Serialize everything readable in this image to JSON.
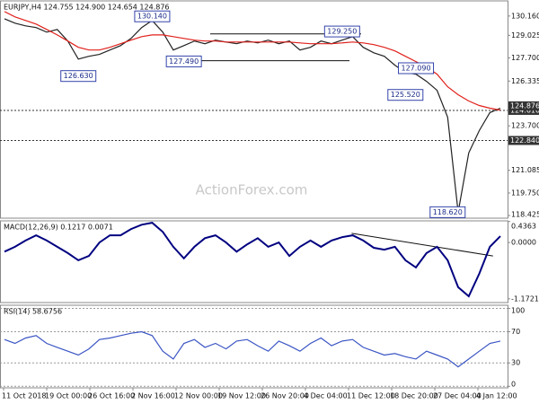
{
  "chart_data": [
    {
      "type": "line",
      "title": "EURJPY,H4 124.755 124.900 124.654 124.876",
      "watermark": "ActionForex.com",
      "ylim": [
        118.27,
        131.05
      ],
      "yticks": [
        {
          "value": 130.16,
          "label": "130.160"
        },
        129.025,
        {
          "value": 127.7,
          "label": "127.700"
        },
        126.335,
        {
          "value": 123.7,
          "label": "123.700"
        },
        121.085,
        {
          "value": 119.75,
          "label": "119.750"
        },
        118.425
      ],
      "series": [
        {
          "color": "#222222",
          "values": [
            130.0,
            129.74,
            129.58,
            129.48,
            129.21,
            129.37,
            128.69,
            127.63,
            127.79,
            127.9,
            128.16,
            128.42,
            128.84,
            129.48,
            129.9,
            129.21,
            128.16,
            128.42,
            128.69,
            128.53,
            128.74,
            128.63,
            128.53,
            128.69,
            128.58,
            128.74,
            128.53,
            128.69,
            128.16,
            128.32,
            128.69,
            128.53,
            128.74,
            128.95,
            128.32,
            128.0,
            127.79,
            127.27,
            126.84,
            126.74,
            126.32,
            125.79,
            124.21,
            118.62,
            122.11,
            123.42,
            124.48,
            124.74
          ]
        },
        {
          "color": "#e0201b",
          "values": [
            130.42,
            130.11,
            129.9,
            129.69,
            129.37,
            129.05,
            128.69,
            128.32,
            128.16,
            128.16,
            128.32,
            128.53,
            128.74,
            128.95,
            129.05,
            129.05,
            128.95,
            128.84,
            128.74,
            128.69,
            128.69,
            128.63,
            128.63,
            128.63,
            128.63,
            128.63,
            128.63,
            128.63,
            128.58,
            128.53,
            128.53,
            128.53,
            128.58,
            128.63,
            128.58,
            128.48,
            128.32,
            128.11,
            127.79,
            127.48,
            127.16,
            126.74,
            126.0,
            125.53,
            125.16,
            124.9,
            124.74,
            124.63
          ]
        }
      ],
      "annotations": [
        {
          "x": 14,
          "value": 130.14,
          "label": "130.140"
        },
        {
          "x": 7,
          "value": 126.63,
          "label": "126.630"
        },
        {
          "x": 17,
          "value": 127.49,
          "label": "127.490"
        },
        {
          "x": 32,
          "value": 129.25,
          "label": "129.250"
        },
        {
          "x": 39,
          "value": 127.09,
          "label": "127.090"
        },
        {
          "x": 38,
          "value": 125.52,
          "label": "125.520"
        },
        {
          "x": 42,
          "value": 118.62,
          "label": "118.620"
        }
      ],
      "trendlines": [
        {
          "x": [
            19.5,
            33.8
          ],
          "values": [
            129.11,
            129.11
          ]
        },
        {
          "x": [
            16,
            32.7
          ],
          "values": [
            127.53,
            127.53
          ]
        }
      ],
      "levels": [
        {
          "value": 124.61,
          "label": "124.610"
        },
        {
          "value": 122.84,
          "label": "122.840"
        }
      ],
      "last": {
        "value": 124.876,
        "label": "124.876"
      }
    },
    {
      "type": "line",
      "title": "MACD(12,26,9) 0.1217 0.0071",
      "ylim": [
        -1.25,
        0.45
      ],
      "yticks": [
        0.4363,
        {
          "value": 0,
          "label": "0.0000"
        },
        -1.1721
      ],
      "series": [
        {
          "color": "#000080",
          "values": [
            -0.19,
            -0.09,
            0.04,
            0.15,
            0.04,
            -0.09,
            -0.22,
            -0.37,
            -0.28,
            0,
            0.15,
            0.15,
            0.28,
            0.37,
            0.41,
            0.22,
            -0.09,
            -0.33,
            -0.09,
            0.09,
            0.15,
            0,
            -0.19,
            -0.04,
            0.09,
            -0.09,
            0,
            -0.28,
            -0.09,
            0.04,
            -0.09,
            0.04,
            0.11,
            0.15,
            0.04,
            -0.11,
            -0.15,
            -0.09,
            -0.37,
            -0.52,
            -0.22,
            -0.09,
            -0.37,
            -0.93,
            -1.12,
            -0.65,
            -0.09,
            0.13
          ]
        }
      ],
      "trendlines": [
        {
          "x": [
            32.9,
            46.3
          ],
          "values": [
            0.19,
            -0.28
          ]
        }
      ]
    },
    {
      "type": "line",
      "title": "RSI(14) 58.6756",
      "ylim": [
        -2,
        104
      ],
      "yticks": [
        100,
        70,
        30,
        0
      ],
      "grid": true,
      "series": [
        {
          "color": "#3b55c4",
          "values": [
            60,
            55,
            62,
            65,
            55,
            50,
            45,
            40,
            48,
            60,
            62,
            65,
            68,
            70,
            65,
            45,
            35,
            55,
            60,
            50,
            55,
            48,
            58,
            60,
            52,
            45,
            58,
            52,
            45,
            55,
            62,
            52,
            58,
            60,
            50,
            45,
            40,
            42,
            38,
            35,
            45,
            40,
            35,
            25,
            35,
            45,
            55,
            58
          ]
        }
      ],
      "xlabels": [
        "11 Oct 2018",
        "19 Oct 00:00",
        "26 Oct 16:00",
        "2 Nov 16:00",
        "12 Nov 00:00",
        "19 Nov 12:00",
        "26 Nov 20:00",
        "4 Dec 04:00",
        "11 Dec 12:00",
        "18 Dec 20:00",
        "27 Dec 04:00",
        "4 Jan 12:00"
      ]
    }
  ]
}
